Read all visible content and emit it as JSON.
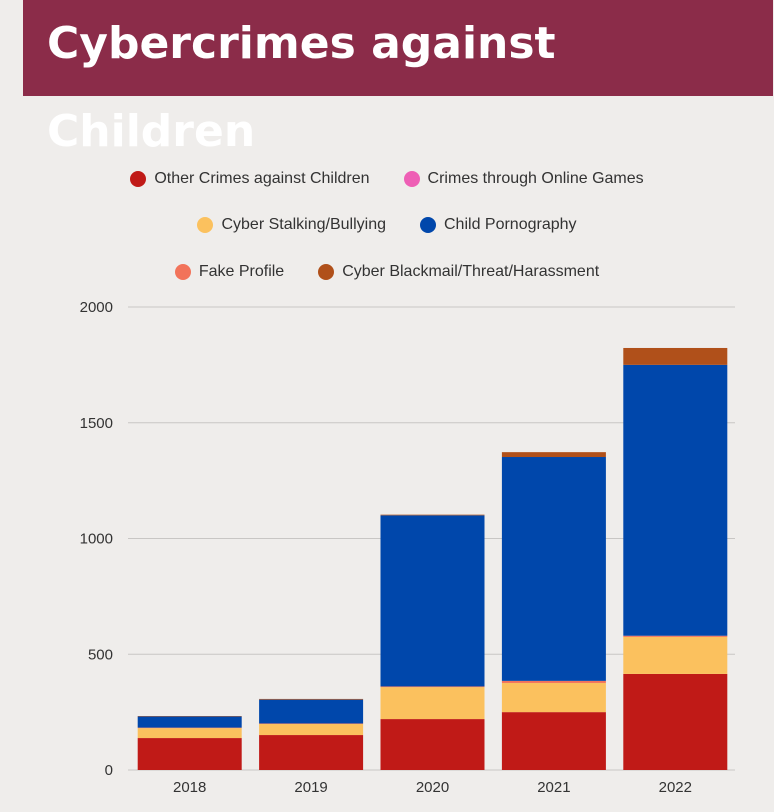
{
  "title": "Cybercrimes against Children",
  "chart_data": {
    "type": "bar",
    "stacked": true,
    "title": "Cybercrimes against Children",
    "categories": [
      "2018",
      "2019",
      "2020",
      "2021",
      "2022"
    ],
    "ylim": [
      0,
      2000
    ],
    "yticks": [
      "0",
      "500",
      "1000",
      "1500",
      "2000"
    ],
    "grid": true,
    "legend_position": "top",
    "series": [
      {
        "name": "Other Crimes against Children",
        "color": "#c01a17",
        "values": [
          138,
          151,
          220,
          250,
          415
        ]
      },
      {
        "name": "Cyber Stalking/Bullying",
        "color": "#fbc15e",
        "values": [
          43,
          48,
          138,
          126,
          160
        ]
      },
      {
        "name": "Fake Profile",
        "color": "#f2735a",
        "values": [
          2,
          2,
          3,
          9,
          5
        ]
      },
      {
        "name": "Crimes through Online Games",
        "color": "#ee5fb5",
        "values": [
          0,
          0,
          0,
          0,
          0
        ]
      },
      {
        "name": "Child Pornography",
        "color": "#0047ab",
        "values": [
          48,
          103,
          739,
          967,
          1170
        ]
      },
      {
        "name": "Cyber Blackmail/Threat/Harassment",
        "color": "#b0501a",
        "values": [
          2,
          3,
          3,
          21,
          73
        ]
      }
    ],
    "legend_rows": [
      [
        0,
        3
      ],
      [
        1,
        4
      ],
      [
        2,
        5
      ]
    ]
  }
}
